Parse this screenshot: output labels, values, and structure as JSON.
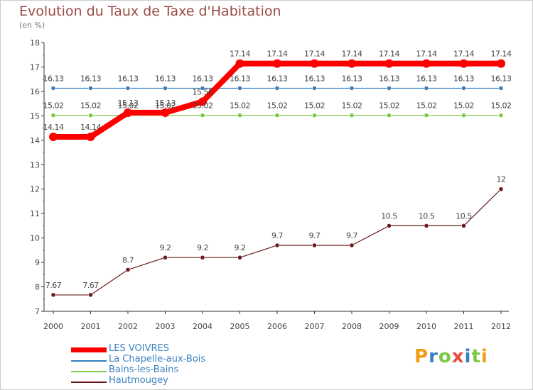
{
  "page": {
    "title": "Evolution du Taux de Taxe d'Habitation",
    "subtitle": "(en %)"
  },
  "chart_data": {
    "type": "line",
    "title": "Evolution du Taux de Taxe d'Habitation",
    "ylabel": "(en %)",
    "xlabel": "",
    "x": [
      "2000",
      "2001",
      "2002",
      "2003",
      "2004",
      "2005",
      "2006",
      "2007",
      "2008",
      "2009",
      "2010",
      "2011",
      "2012"
    ],
    "ylim": [
      7,
      18
    ],
    "yticks": [
      7,
      8,
      9,
      10,
      11,
      12,
      13,
      14,
      15,
      16,
      17,
      18
    ],
    "grid": false,
    "legend_position": "bottom-left",
    "series": [
      {
        "name": "LES VOIVRES",
        "color": "#ff0000",
        "values": [
          14.14,
          14.14,
          15.13,
          15.13,
          15.58,
          17.14,
          17.14,
          17.14,
          17.14,
          17.14,
          17.14,
          17.14,
          17.14
        ],
        "labels": [
          "14.14",
          "14.14",
          "15.13",
          "15.13",
          "15.58",
          "17.14",
          "17.14",
          "17.14",
          "17.14",
          "17.14",
          "17.14",
          "17.14",
          "17.14"
        ]
      },
      {
        "name": "La Chapelle-aux-Bois",
        "color": "#3a7fc1",
        "values": [
          16.13,
          16.13,
          16.13,
          16.13,
          16.13,
          16.13,
          16.13,
          16.13,
          16.13,
          16.13,
          16.13,
          16.13,
          16.13
        ],
        "labels": [
          "16.13",
          "16.13",
          "16.13",
          "16.13",
          "16.13",
          "16.13",
          "16.13",
          "16.13",
          "16.13",
          "16.13",
          "16.13",
          "16.13",
          "16.13"
        ]
      },
      {
        "name": "Bains-les-Bains",
        "color": "#7ac943",
        "values": [
          15.02,
          15.02,
          15.02,
          15.02,
          15.02,
          15.02,
          15.02,
          15.02,
          15.02,
          15.02,
          15.02,
          15.02,
          15.02
        ],
        "labels": [
          "15.02",
          "15.02",
          "15.02",
          "15.02",
          "15.02",
          "15.02",
          "15.02",
          "15.02",
          "15.02",
          "15.02",
          "15.02",
          "15.02",
          "15.02"
        ]
      },
      {
        "name": "Hautmougey",
        "color": "#6b1b1b",
        "values": [
          7.67,
          7.67,
          8.7,
          9.2,
          9.2,
          9.2,
          9.7,
          9.7,
          9.7,
          10.5,
          10.5,
          10.5,
          12
        ],
        "labels": [
          "7.67",
          "7.67",
          "8.7",
          "9.2",
          "9.2",
          "9.2",
          "9.7",
          "9.7",
          "9.7",
          "10.5",
          "10.5",
          "10.5",
          "12"
        ]
      }
    ]
  },
  "logo": {
    "text": "Proxiti"
  }
}
